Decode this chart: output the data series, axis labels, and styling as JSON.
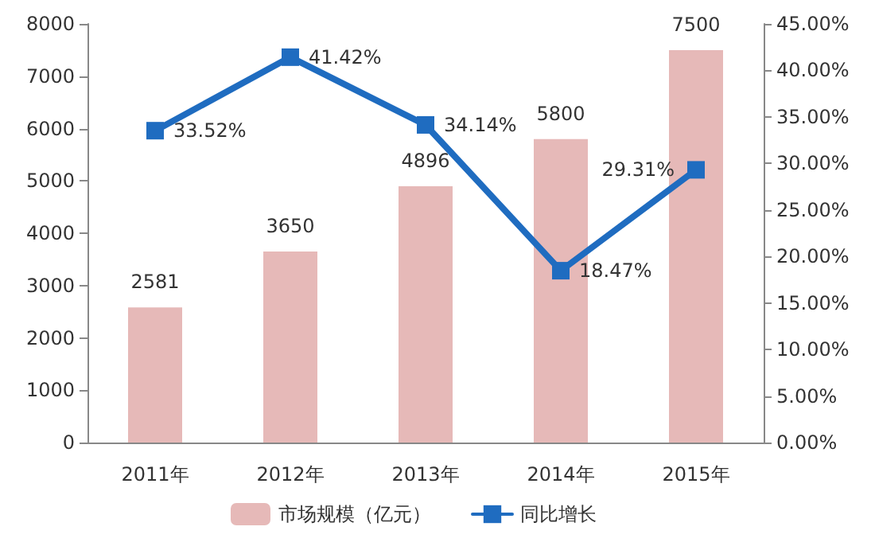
{
  "chart_data": {
    "type": "bar",
    "categories": [
      "2011年",
      "2012年",
      "2013年",
      "2014年",
      "2015年"
    ],
    "series": [
      {
        "name": "市场规模（亿元）",
        "color": "#e6b9b8",
        "values": [
          2581,
          3650,
          4896,
          5800,
          7500
        ],
        "value_labels": [
          "2581",
          "3650",
          "4896",
          "5800",
          "7500"
        ]
      },
      {
        "name": "同比增长",
        "type": "line",
        "axis": "y2",
        "color": "#1f6cc0",
        "values": [
          33.52,
          41.42,
          34.14,
          18.47,
          29.31
        ],
        "value_labels": [
          "33.52%",
          "41.42%",
          "34.14%",
          "18.47%",
          "29.31%"
        ]
      }
    ],
    "ylim": [
      0,
      8000
    ],
    "yticks": [
      0,
      1000,
      2000,
      3000,
      4000,
      5000,
      6000,
      7000,
      8000
    ],
    "y2lim": [
      0,
      45
    ],
    "y2ticks": [
      {
        "value": 0,
        "label": "0.00%"
      },
      {
        "value": 5,
        "label": "5.00%"
      },
      {
        "value": 10,
        "label": "10.00%"
      },
      {
        "value": 15,
        "label": "15.00%"
      },
      {
        "value": 20,
        "label": "20.00%"
      },
      {
        "value": 25,
        "label": "25.00%"
      },
      {
        "value": 30,
        "label": "30.00%"
      },
      {
        "value": 35,
        "label": "35.00%"
      },
      {
        "value": 40,
        "label": "40.00%"
      },
      {
        "value": 45,
        "label": "45.00%"
      }
    ],
    "legend": "bottom",
    "grid": false,
    "marker": "square",
    "line_style": "solid"
  }
}
